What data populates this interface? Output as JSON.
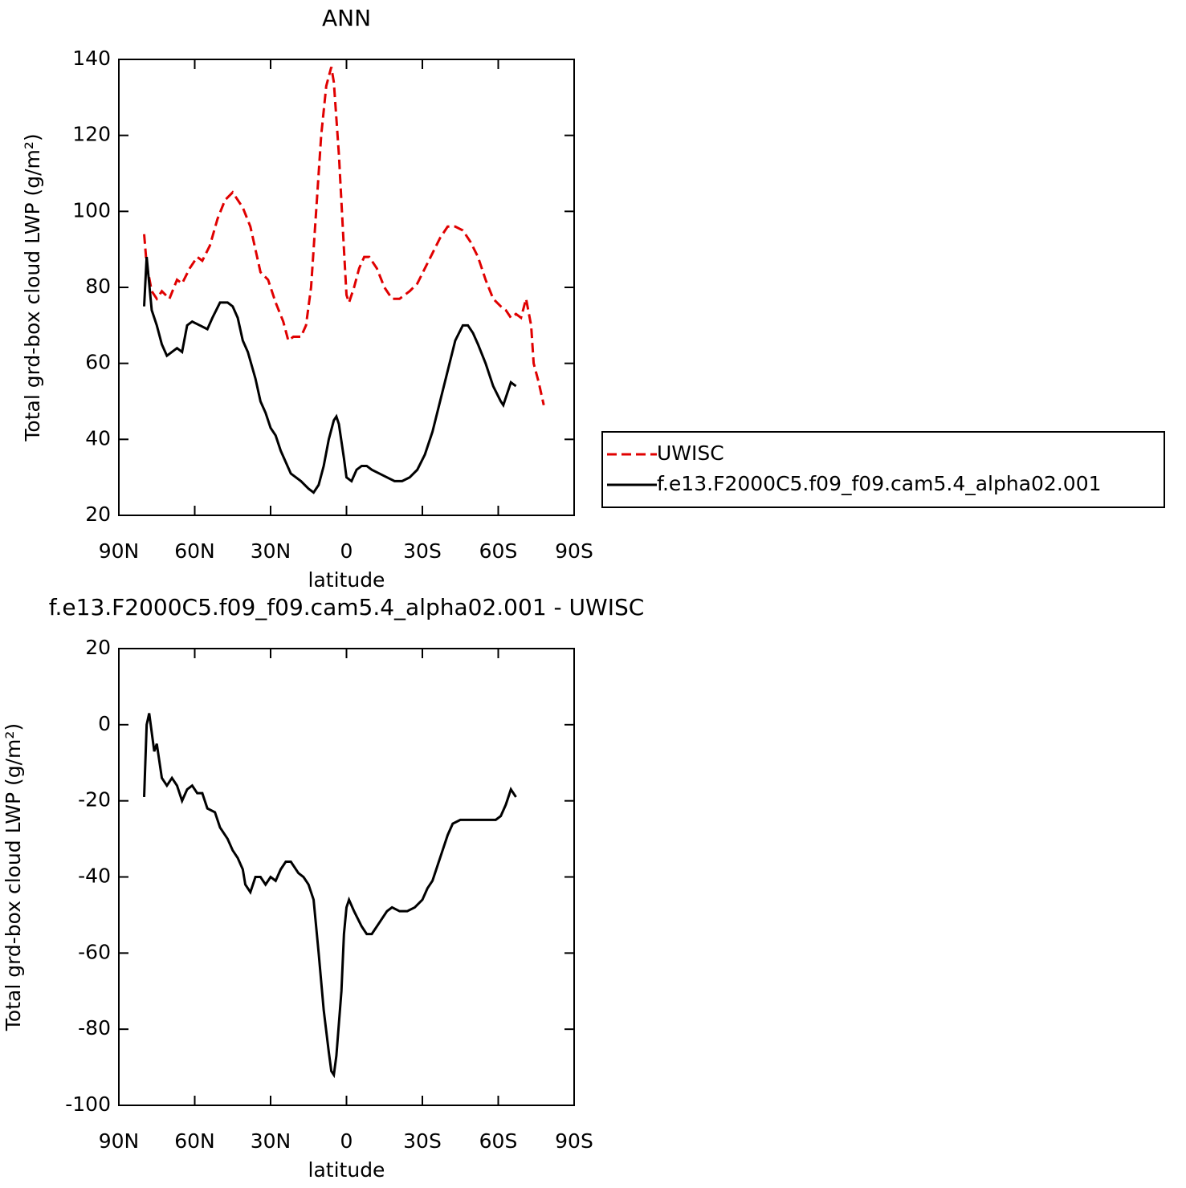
{
  "chart_data": [
    {
      "type": "line",
      "title": "ANN",
      "xlabel": "latitude",
      "ylabel": "Total grd-box cloud LWP (g/m²)",
      "xlim": [
        90,
        -90
      ],
      "xticks": [
        {
          "value": 90,
          "label": "90N"
        },
        {
          "value": 60,
          "label": "60N"
        },
        {
          "value": 30,
          "label": "30N"
        },
        0,
        {
          "value": -30,
          "label": "30S"
        },
        {
          "value": -60,
          "label": "60S"
        },
        {
          "value": -90,
          "label": "90S"
        }
      ],
      "ylim": [
        20,
        140
      ],
      "yticks": [
        20,
        40,
        60,
        80,
        100,
        120,
        140
      ],
      "legend": "right",
      "series": [
        {
          "name": "UWISC",
          "color": "#e00000",
          "dashed": true,
          "x": [
            80,
            79,
            77,
            75,
            73,
            70,
            67,
            65,
            62,
            59,
            57,
            54,
            51,
            48,
            45,
            43,
            41,
            38,
            36,
            34,
            31,
            28,
            25,
            23,
            21,
            18,
            16,
            14,
            12,
            10,
            8,
            6,
            5,
            3,
            1,
            0,
            -1,
            -3,
            -5,
            -7,
            -9,
            -12,
            -15,
            -18,
            -21,
            -25,
            -28,
            -31,
            -34,
            -37,
            -40,
            -43,
            -46,
            -49,
            -52,
            -55,
            -58,
            -61,
            -63,
            -65,
            -67,
            -69,
            -71,
            -73,
            -74,
            -76,
            -78
          ],
          "values": [
            94,
            86,
            79,
            77,
            79,
            77,
            82,
            81,
            85,
            88,
            87,
            91,
            98,
            103,
            105,
            103,
            101,
            96,
            90,
            84,
            82,
            76,
            71,
            66,
            67,
            67,
            70,
            80,
            100,
            120,
            133,
            138,
            134,
            115,
            90,
            78,
            76,
            80,
            85,
            88,
            88,
            85,
            80,
            77,
            77,
            79,
            81,
            85,
            89,
            93,
            96,
            96,
            95,
            92,
            88,
            82,
            77,
            75,
            74,
            72,
            73,
            72,
            77,
            70,
            60,
            55,
            49
          ]
        },
        {
          "name": "f.e13.F2000C5.f09_f09.cam5.4_alpha02.001",
          "color": "#000000",
          "dashed": false,
          "x": [
            80,
            79,
            77,
            75,
            73,
            71,
            69,
            67,
            65,
            63,
            61,
            58,
            55,
            53,
            50,
            47,
            45,
            43,
            41,
            39,
            36,
            34,
            32,
            30,
            28,
            26,
            24,
            22,
            20,
            18,
            15,
            13,
            11,
            9,
            7,
            5,
            4,
            3,
            1,
            0,
            -2,
            -4,
            -6,
            -8,
            -10,
            -13,
            -16,
            -19,
            -22,
            -25,
            -28,
            -31,
            -34,
            -37,
            -40,
            -43,
            -46,
            -48,
            -50,
            -52,
            -55,
            -58,
            -61,
            -62,
            -64,
            -65,
            -67
          ],
          "values": [
            75,
            88,
            74,
            70,
            65,
            62,
            63,
            64,
            63,
            70,
            71,
            70,
            69,
            72,
            76,
            76,
            75,
            72,
            66,
            63,
            56,
            50,
            47,
            43,
            41,
            37,
            34,
            31,
            30,
            29,
            27,
            26,
            28,
            33,
            40,
            45,
            46,
            44,
            35,
            30,
            29,
            32,
            33,
            33,
            32,
            31,
            30,
            29,
            29,
            30,
            32,
            36,
            42,
            50,
            58,
            66,
            70,
            70,
            68,
            65,
            60,
            54,
            50,
            49,
            53,
            55,
            54
          ]
        }
      ]
    },
    {
      "type": "line",
      "title": "f.e13.F2000C5.f09_f09.cam5.4_alpha02.001 - UWISC",
      "xlabel": "latitude",
      "ylabel": "Total grd-box cloud LWP (g/m²)",
      "xlim": [
        90,
        -90
      ],
      "xticks": [
        {
          "value": 90,
          "label": "90N"
        },
        {
          "value": 60,
          "label": "60N"
        },
        {
          "value": 30,
          "label": "30N"
        },
        0,
        {
          "value": -30,
          "label": "30S"
        },
        {
          "value": -60,
          "label": "60S"
        },
        {
          "value": -90,
          "label": "90S"
        }
      ],
      "ylim": [
        -100,
        20
      ],
      "yticks": [
        -100,
        -80,
        -60,
        -40,
        -20,
        0,
        20
      ],
      "series": [
        {
          "color": "#000000",
          "dashed": false,
          "x": [
            80,
            79,
            78,
            76,
            75,
            73,
            71,
            69,
            67,
            65,
            63,
            61,
            59,
            57,
            55,
            52,
            50,
            47,
            45,
            43,
            41,
            40,
            38,
            36,
            34,
            32,
            30,
            28,
            26,
            24,
            22,
            19,
            17,
            15,
            13,
            11,
            9,
            7,
            6,
            5,
            4,
            2,
            1,
            0,
            -1,
            -3,
            -6,
            -8,
            -10,
            -13,
            -16,
            -18,
            -21,
            -24,
            -27,
            -30,
            -32,
            -34,
            -36,
            -38,
            -40,
            -42,
            -45,
            -48,
            -51,
            -54,
            -57,
            -59,
            -61,
            -63,
            -65,
            -67
          ],
          "values": [
            -19,
            0,
            3,
            -7,
            -5,
            -14,
            -16,
            -14,
            -16,
            -20,
            -17,
            -16,
            -18,
            -18,
            -22,
            -23,
            -27,
            -30,
            -33,
            -35,
            -38,
            -42,
            -44,
            -40,
            -40,
            -42,
            -40,
            -41,
            -38,
            -36,
            -36,
            -39,
            -40,
            -42,
            -46,
            -60,
            -75,
            -86,
            -91,
            -92,
            -87,
            -70,
            -55,
            -48,
            -46,
            -49,
            -53,
            -55,
            -55,
            -52,
            -49,
            -48,
            -49,
            -49,
            -48,
            -46,
            -43,
            -41,
            -37,
            -33,
            -29,
            -26,
            -25,
            -25,
            -25,
            -25,
            -25,
            -25,
            -24,
            -21,
            -17,
            -19
          ]
        }
      ]
    }
  ]
}
